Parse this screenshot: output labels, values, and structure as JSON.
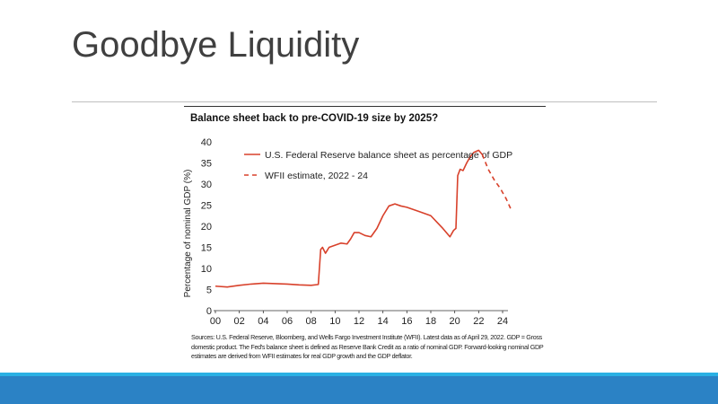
{
  "slide": {
    "title": "Goodbye Liquidity"
  },
  "chart_data": {
    "type": "line",
    "title": "Balance sheet back to pre-COVID-19 size by 2025?",
    "xlabel": "",
    "ylabel": "Percentage of nominal GDP (%)",
    "xlim": [
      2000,
      2024.8
    ],
    "ylim": [
      0,
      40
    ],
    "x_ticks": [
      "00",
      "02",
      "04",
      "06",
      "08",
      "10",
      "12",
      "14",
      "16",
      "18",
      "20",
      "22",
      "24"
    ],
    "y_ticks": [
      "0",
      "5",
      "10",
      "15",
      "20",
      "25",
      "30",
      "35",
      "40"
    ],
    "color": "#d8412b",
    "legend_position": "top-left",
    "series": [
      {
        "name": "U.S. Federal Reserve balance sheet as percentage of GDP",
        "style": "solid",
        "x": [
          2000,
          2001,
          2002,
          2003,
          2004,
          2005,
          2006,
          2007,
          2008,
          2008.6,
          2008.8,
          2008.95,
          2009.2,
          2009.5,
          2010,
          2010.5,
          2011,
          2011.3,
          2011.6,
          2012,
          2012.5,
          2013,
          2013.5,
          2014,
          2014.5,
          2015,
          2015.5,
          2016,
          2017,
          2018,
          2018.5,
          2019,
          2019.6,
          2019.9,
          2020.1,
          2020.25,
          2020.45,
          2020.7,
          2021,
          2021.3,
          2021.6,
          2022,
          2022.3
        ],
        "y": [
          5.8,
          5.6,
          6.0,
          6.3,
          6.5,
          6.4,
          6.3,
          6.1,
          6.0,
          6.2,
          14.5,
          15,
          13.6,
          15,
          15.5,
          16,
          15.8,
          17,
          18.5,
          18.5,
          17.8,
          17.5,
          19.5,
          22.5,
          24.8,
          25.3,
          24.8,
          24.5,
          23.5,
          22.5,
          21,
          19.5,
          17.5,
          19,
          19.5,
          32,
          33.5,
          33.2,
          35,
          36.5,
          37.5,
          38,
          37
        ]
      },
      {
        "name": "WFII estimate, 2022 - 24",
        "style": "dashed",
        "x": [
          2022.3,
          2022.8,
          2023.3,
          2023.8,
          2024.3,
          2024.7
        ],
        "y": [
          37,
          33.5,
          31,
          29,
          26.5,
          24
        ]
      }
    ]
  },
  "footnote": "Sources: U.S. Federal Reserve, Bloomberg, and Wells Fargo Investment Institute (WFII). Latest data as of April 29, 2022. GDP = Gross domestic product. The Fed's balance sheet is defined as Reserve Bank Credit as a ratio of nominal GDP. Forward-looking nominal GDP estimates are derived from WFII estimates for real GDP growth and the GDP deflator."
}
